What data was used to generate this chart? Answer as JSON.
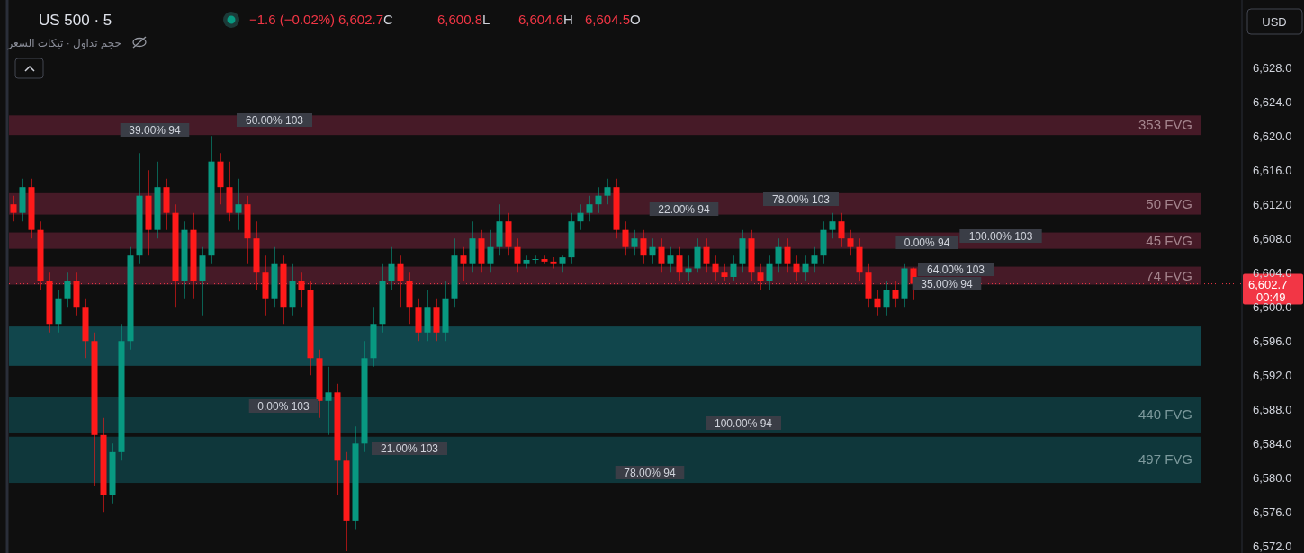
{
  "chart_data": {
    "type": "candlestick",
    "title": "US 500 · 5",
    "categories": [
      null,
      null,
      null,
      null,
      null,
      null,
      null,
      null,
      null,
      null,
      null,
      null,
      null,
      null,
      null,
      null,
      null,
      null,
      null,
      null,
      null,
      null,
      null,
      null,
      null,
      null,
      null,
      null,
      null,
      null,
      null,
      null,
      null,
      null,
      null,
      null,
      null,
      null,
      null,
      null,
      null,
      null,
      null,
      null,
      null,
      null,
      null,
      null,
      null,
      null,
      null,
      null,
      null,
      null,
      null,
      null,
      null,
      null,
      null,
      null,
      null,
      null,
      null,
      null,
      null,
      null,
      null,
      null,
      null,
      null,
      null,
      null,
      null,
      null,
      null,
      null,
      null,
      null,
      null,
      null,
      null,
      null,
      null,
      null,
      null,
      null,
      null,
      null,
      null,
      null,
      null,
      null,
      null,
      null,
      null,
      null,
      null,
      null,
      null,
      null,
      null,
      null,
      null,
      null,
      null,
      null,
      null,
      null,
      null,
      null,
      null,
      null,
      null,
      null,
      null,
      null,
      null,
      null,
      null,
      null,
      null,
      null,
      null,
      null,
      null,
      null,
      null,
      null,
      null,
      null,
      null,
      null,
      null,
      null,
      null,
      null,
      null
    ],
    "ohlc": [
      [
        6612,
        6613,
        6610,
        6611
      ],
      [
        6611,
        6615,
        6610,
        6614
      ],
      [
        6614,
        6615,
        6608,
        6609
      ],
      [
        6609,
        6610,
        6602,
        6603
      ],
      [
        6603,
        6604,
        6597,
        6598
      ],
      [
        6598,
        6602,
        6597,
        6601
      ],
      [
        6601,
        6604,
        6600,
        6603
      ],
      [
        6603,
        6604,
        6599,
        6600
      ],
      [
        6600,
        6601,
        6594,
        6596
      ],
      [
        6596,
        6597,
        6579,
        6585
      ],
      [
        6585,
        6587,
        6576,
        6578
      ],
      [
        6578,
        6584,
        6577,
        6583
      ],
      [
        6583,
        6598,
        6582,
        6596
      ],
      [
        6596,
        6607,
        6595,
        6606
      ],
      [
        6606,
        6618,
        6605,
        6613
      ],
      [
        6613,
        6616,
        6606,
        6609
      ],
      [
        6609,
        6617,
        6608,
        6614
      ],
      [
        6614,
        6615,
        6609,
        6611
      ],
      [
        6611,
        6612,
        6600,
        6603
      ],
      [
        6603,
        6610,
        6601,
        6609
      ],
      [
        6609,
        6611,
        6601,
        6603
      ],
      [
        6603,
        6607,
        6599,
        6606
      ],
      [
        6606,
        6620,
        6605,
        6617
      ],
      [
        6617,
        6618,
        6612,
        6614
      ],
      [
        6614,
        6617,
        6610,
        6611
      ],
      [
        6611,
        6615,
        6609,
        6612
      ],
      [
        6612,
        6613,
        6605,
        6608
      ],
      [
        6608,
        6610,
        6602,
        6604
      ],
      [
        6604,
        6606,
        6599,
        6601
      ],
      [
        6601,
        6607,
        6600,
        6605
      ],
      [
        6605,
        6606,
        6598,
        6600
      ],
      [
        6600,
        6605,
        6599,
        6603
      ],
      [
        6603,
        6604,
        6600,
        6602
      ],
      [
        6602,
        6603,
        6592,
        6594
      ],
      [
        6594,
        6595,
        6587,
        6589
      ],
      [
        6589,
        6593,
        6585,
        6590
      ],
      [
        6590,
        6591,
        6578,
        6582
      ],
      [
        6582,
        6583,
        6571.4,
        6575
      ],
      [
        6575,
        6586,
        6574,
        6584
      ],
      [
        6584,
        6596,
        6583,
        6594
      ],
      [
        6594,
        6600,
        6593,
        6598
      ],
      [
        6598,
        6605,
        6597,
        6603
      ],
      [
        6603,
        6607,
        6602,
        6605
      ],
      [
        6605,
        6606,
        6600,
        6603
      ],
      [
        6603,
        6604,
        6598,
        6600
      ],
      [
        6600,
        6601,
        6596,
        6597
      ],
      [
        6597,
        6602,
        6596,
        6600
      ],
      [
        6600,
        6601,
        6596,
        6597
      ],
      [
        6597,
        6603,
        6596,
        6601
      ],
      [
        6601,
        6608,
        6600,
        6606
      ],
      [
        6606,
        6607,
        6603,
        6605
      ],
      [
        6605,
        6610,
        6604,
        6608
      ],
      [
        6608,
        6609,
        6604,
        6605
      ],
      [
        6605,
        6609,
        6604,
        6607
      ],
      [
        6607,
        6612,
        6606,
        6610
      ],
      [
        6610,
        6611,
        6606,
        6607
      ],
      [
        6607,
        6608,
        6604,
        6605
      ],
      [
        6605,
        6606,
        6604.5,
        6605.5
      ],
      [
        6605.5,
        6606,
        6605,
        6605.6
      ],
      [
        6605.6,
        6606,
        6605,
        6605.3
      ],
      [
        6605.3,
        6605.8,
        6604.5,
        6605
      ],
      [
        6605,
        6606,
        6604,
        6605.8
      ],
      [
        6605.8,
        6611,
        6605,
        6610
      ],
      [
        6610,
        6612,
        6609,
        6611
      ],
      [
        6611,
        6613,
        6610,
        6612
      ],
      [
        6612,
        6614,
        6611,
        6613
      ],
      [
        6613,
        6615,
        6612,
        6614
      ],
      [
        6614,
        6615,
        6608,
        6609
      ],
      [
        6609,
        6610,
        6606,
        6607
      ],
      [
        6607,
        6609,
        6606,
        6608
      ],
      [
        6608,
        6609,
        6605,
        6606
      ],
      [
        6606,
        6608,
        6605,
        6607
      ],
      [
        6607,
        6608,
        6604,
        6605
      ],
      [
        6605,
        6607,
        6604,
        6606
      ],
      [
        6606,
        6607,
        6603,
        6604
      ],
      [
        6604,
        6606,
        6603,
        6604.5
      ],
      [
        6604.5,
        6608,
        6604,
        6607
      ],
      [
        6607,
        6608,
        6604,
        6605
      ],
      [
        6605,
        6606,
        6603,
        6604
      ],
      [
        6604,
        6605,
        6603,
        6603.5
      ],
      [
        6603.5,
        6606,
        6603,
        6605
      ],
      [
        6605,
        6609,
        6604,
        6608
      ],
      [
        6608,
        6609,
        6603,
        6604
      ],
      [
        6604,
        6605,
        6602,
        6603
      ],
      [
        6603,
        6606,
        6602,
        6605
      ],
      [
        6605,
        6608,
        6604,
        6607
      ],
      [
        6607,
        6608,
        6604,
        6605
      ],
      [
        6605,
        6606,
        6603,
        6604
      ],
      [
        6604,
        6606,
        6603,
        6605
      ],
      [
        6605,
        6607,
        6604,
        6606
      ],
      [
        6606,
        6610,
        6605,
        6609
      ],
      [
        6609,
        6611,
        6608,
        6610
      ],
      [
        6610,
        6611,
        6607,
        6608
      ],
      [
        6608,
        6609,
        6606,
        6607
      ],
      [
        6607,
        6608,
        6603,
        6604
      ],
      [
        6604,
        6605,
        6600,
        6601
      ],
      [
        6601,
        6602,
        6599,
        6600
      ],
      [
        6600,
        6603,
        6599,
        6602
      ],
      [
        6602,
        6603,
        6600,
        6601
      ],
      [
        6601,
        6605,
        6600,
        6604.5
      ],
      [
        6604.5,
        6604.6,
        6600.8,
        6602.7
      ],
      null,
      null,
      null,
      null,
      null,
      null,
      null,
      null,
      null,
      null,
      null,
      null,
      null,
      null,
      null,
      null,
      null,
      null,
      null,
      null,
      null,
      null,
      null,
      null,
      null,
      null,
      null,
      null,
      null,
      null,
      null,
      null,
      null,
      null,
      null,
      null
    ],
    "ylim": [
      6571.2,
      6635.9
    ],
    "yticks": [
      {
        "value": 6572,
        "label": "6,572.0"
      },
      {
        "value": 6576,
        "label": "6,576.0"
      },
      {
        "value": 6580,
        "label": "6,580.0"
      },
      {
        "value": 6584,
        "label": "6,584.0"
      },
      {
        "value": 6588,
        "label": "6,588.0"
      },
      {
        "value": 6592,
        "label": "6,592.0"
      },
      {
        "value": 6596,
        "label": "6,596.0"
      },
      {
        "value": 6600,
        "label": "6,600.0"
      },
      {
        "value": 6604,
        "label": "6,604.0"
      },
      {
        "value": 6608,
        "label": "6,608.0"
      },
      {
        "value": 6612,
        "label": "6,612.0"
      },
      {
        "value": 6616,
        "label": "6,616.0"
      },
      {
        "value": 6620,
        "label": "6,620.0"
      },
      {
        "value": 6624,
        "label": "6,624.0"
      },
      {
        "value": 6628,
        "label": "6,628.0"
      }
    ],
    "bands": [
      {
        "axis": "y",
        "from": 6620.1,
        "to": 6622.4,
        "label": "353 FVG",
        "color": "#5a1f30"
      },
      {
        "axis": "y",
        "from": 6610.8,
        "to": 6613.3,
        "label": "50 FVG",
        "color": "#5a1f30"
      },
      {
        "axis": "y",
        "from": 6606.8,
        "to": 6608.7,
        "label": "45 FVG",
        "color": "#5a1f30"
      },
      {
        "axis": "y",
        "from": 6602.6,
        "to": 6604.7,
        "label": "74 FVG",
        "color": "#5a1f30"
      },
      {
        "axis": "y",
        "from": 6593.1,
        "to": 6597.7,
        "label": null,
        "color": "#135a62"
      },
      {
        "axis": "y",
        "from": 6585.3,
        "to": 6589.4,
        "label": "440 FVG",
        "color": "#10454b"
      },
      {
        "axis": "y",
        "from": 6579.4,
        "to": 6584.8,
        "label": "497 FVG",
        "color": "#10454b"
      }
    ],
    "ref_lines": [
      {
        "axis": "y",
        "value": 6602.7,
        "label": "6,602.7",
        "color": "#f23645",
        "line_style": "dotted"
      }
    ],
    "annotations": [
      "−1.6 (−0.02%)",
      "6,602.7C",
      "6,600.8L",
      "6,604.6H",
      "6,604.5O",
      "حجم تداول · تيكات السعر",
      "USD",
      "00:49",
      "60.00% 103",
      "39.00% 94",
      "78.00% 103",
      "22.00% 94",
      "0.00% 94",
      "100.00% 103",
      "64.00% 103",
      "35.00% 94",
      "0.00% 103",
      "100.00% 94",
      "21.00% 103",
      "78.00% 94"
    ]
  }
}
